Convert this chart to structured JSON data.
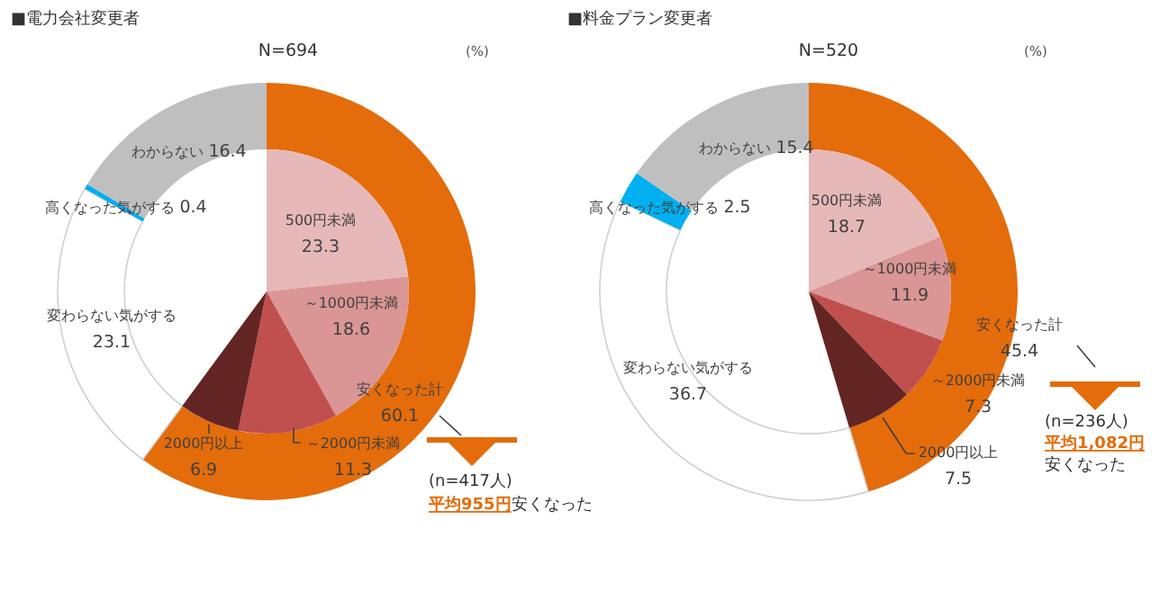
{
  "chart_data": [
    {
      "type": "donut",
      "title": "■電力会社変更者",
      "subtitle": "N=694",
      "annotations": [
        "(%)",
        "(n=417人)",
        "平均955円",
        "安くなった"
      ],
      "data_labels": true,
      "categories": [
        "安くなった計",
        "変わらない気がする",
        "高くなった気がする",
        "わからない"
      ],
      "values": [
        60.1,
        23.1,
        0.4,
        16.4
      ],
      "colors": [
        "#e46c0a",
        "#ffffff",
        "#00b0f0",
        "#bfbfbf"
      ]
    },
    {
      "type": "pie",
      "data_labels": true,
      "categories": [
        "500円未満",
        "～1000円未満",
        "～2000円未満",
        "2000円以上"
      ],
      "values": [
        23.3,
        18.6,
        11.3,
        6.9
      ],
      "colors": [
        "#e6b9b8",
        "#d99694",
        "#c0504d",
        "#632523"
      ]
    },
    {
      "type": "donut",
      "title": "■料金プラン変更者",
      "subtitle": "N=520",
      "annotations": [
        "(%)",
        "(n=236人)",
        "平均1,082円",
        "安くなった"
      ],
      "data_labels": true,
      "categories": [
        "安くなった計",
        "変わらない気がする",
        "高くなった気がする",
        "わからない"
      ],
      "values": [
        45.4,
        36.7,
        2.5,
        15.4
      ],
      "colors": [
        "#e46c0a",
        "#ffffff",
        "#00b0f0",
        "#bfbfbf"
      ]
    },
    {
      "type": "pie",
      "data_labels": true,
      "categories": [
        "500円未満",
        "～1000円未満",
        "～2000円未満",
        "2000円以上"
      ],
      "values": [
        18.7,
        11.9,
        7.3,
        7.5
      ],
      "colors": [
        "#e6b9b8",
        "#d99694",
        "#c0504d",
        "#632523"
      ]
    }
  ]
}
